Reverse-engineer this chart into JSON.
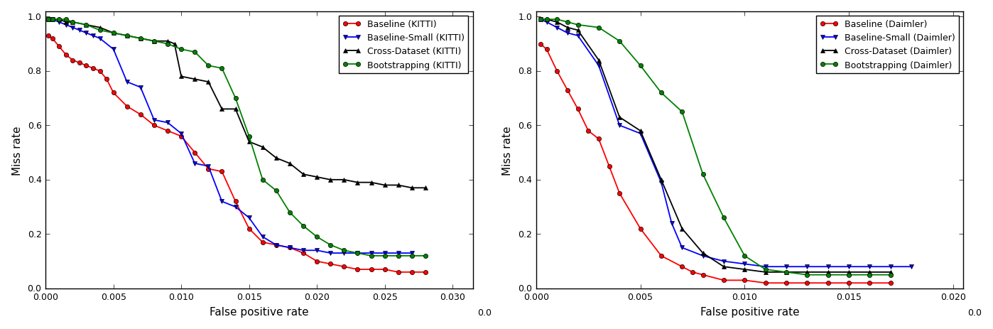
{
  "xlabel": "False positive rate",
  "ylabel": "Miss rate",
  "kitti_baseline_x": [
    0.0002,
    0.0005,
    0.001,
    0.0015,
    0.002,
    0.0025,
    0.003,
    0.0035,
    0.004,
    0.0045,
    0.005,
    0.006,
    0.007,
    0.008,
    0.009,
    0.01,
    0.011,
    0.012,
    0.013,
    0.014,
    0.015,
    0.016,
    0.017,
    0.018,
    0.019,
    0.02,
    0.021,
    0.022,
    0.023,
    0.024,
    0.025,
    0.026,
    0.027,
    0.028
  ],
  "kitti_baseline_y": [
    0.93,
    0.92,
    0.89,
    0.86,
    0.84,
    0.83,
    0.82,
    0.81,
    0.8,
    0.77,
    0.72,
    0.67,
    0.64,
    0.6,
    0.58,
    0.56,
    0.5,
    0.44,
    0.43,
    0.32,
    0.22,
    0.17,
    0.16,
    0.15,
    0.13,
    0.1,
    0.09,
    0.08,
    0.07,
    0.07,
    0.07,
    0.06,
    0.06,
    0.06
  ],
  "kitti_baseline_small_x": [
    0.0002,
    0.0005,
    0.001,
    0.0015,
    0.002,
    0.0025,
    0.003,
    0.0035,
    0.004,
    0.005,
    0.006,
    0.007,
    0.008,
    0.009,
    0.01,
    0.011,
    0.012,
    0.013,
    0.014,
    0.015,
    0.016,
    0.017,
    0.018,
    0.019,
    0.02,
    0.021,
    0.022,
    0.023,
    0.024,
    0.025,
    0.026,
    0.027
  ],
  "kitti_baseline_small_y": [
    0.99,
    0.99,
    0.98,
    0.97,
    0.96,
    0.95,
    0.94,
    0.93,
    0.92,
    0.88,
    0.76,
    0.74,
    0.62,
    0.61,
    0.57,
    0.46,
    0.45,
    0.32,
    0.3,
    0.26,
    0.19,
    0.16,
    0.15,
    0.14,
    0.14,
    0.13,
    0.13,
    0.13,
    0.13,
    0.13,
    0.13,
    0.13
  ],
  "kitti_cross_x": [
    0.0002,
    0.0005,
    0.001,
    0.0015,
    0.002,
    0.003,
    0.004,
    0.005,
    0.006,
    0.007,
    0.008,
    0.009,
    0.0095,
    0.01,
    0.011,
    0.012,
    0.013,
    0.014,
    0.015,
    0.016,
    0.017,
    0.018,
    0.019,
    0.02,
    0.021,
    0.022,
    0.023,
    0.024,
    0.025,
    0.026,
    0.027,
    0.028
  ],
  "kitti_cross_y": [
    0.99,
    0.99,
    0.99,
    0.98,
    0.98,
    0.97,
    0.96,
    0.94,
    0.93,
    0.92,
    0.91,
    0.91,
    0.9,
    0.78,
    0.77,
    0.76,
    0.66,
    0.66,
    0.54,
    0.52,
    0.48,
    0.46,
    0.42,
    0.41,
    0.4,
    0.4,
    0.39,
    0.39,
    0.38,
    0.38,
    0.37,
    0.37
  ],
  "kitti_bootstrap_x": [
    0.0002,
    0.0005,
    0.001,
    0.0015,
    0.002,
    0.003,
    0.004,
    0.005,
    0.006,
    0.007,
    0.008,
    0.009,
    0.01,
    0.011,
    0.012,
    0.013,
    0.014,
    0.015,
    0.016,
    0.017,
    0.018,
    0.019,
    0.02,
    0.021,
    0.022,
    0.023,
    0.024,
    0.025,
    0.026,
    0.027,
    0.028
  ],
  "kitti_bootstrap_y": [
    0.99,
    0.99,
    0.99,
    0.99,
    0.98,
    0.97,
    0.95,
    0.94,
    0.93,
    0.92,
    0.91,
    0.9,
    0.88,
    0.87,
    0.82,
    0.81,
    0.7,
    0.56,
    0.4,
    0.36,
    0.28,
    0.23,
    0.19,
    0.16,
    0.14,
    0.13,
    0.12,
    0.12,
    0.12,
    0.12,
    0.12
  ],
  "daimler_baseline_x": [
    0.0002,
    0.0005,
    0.001,
    0.0015,
    0.002,
    0.0025,
    0.003,
    0.0035,
    0.004,
    0.005,
    0.006,
    0.007,
    0.0075,
    0.008,
    0.009,
    0.01,
    0.011,
    0.012,
    0.013,
    0.014,
    0.015,
    0.016,
    0.017
  ],
  "daimler_baseline_y": [
    0.9,
    0.88,
    0.8,
    0.73,
    0.66,
    0.58,
    0.55,
    0.45,
    0.35,
    0.22,
    0.12,
    0.08,
    0.06,
    0.05,
    0.03,
    0.03,
    0.02,
    0.02,
    0.02,
    0.02,
    0.02,
    0.02,
    0.02
  ],
  "daimler_baseline_small_x": [
    0.0002,
    0.0005,
    0.001,
    0.0015,
    0.002,
    0.003,
    0.004,
    0.005,
    0.006,
    0.0065,
    0.007,
    0.008,
    0.009,
    0.01,
    0.011,
    0.012,
    0.013,
    0.014,
    0.015,
    0.016,
    0.017,
    0.018
  ],
  "daimler_baseline_small_y": [
    0.99,
    0.98,
    0.96,
    0.94,
    0.93,
    0.82,
    0.6,
    0.57,
    0.39,
    0.24,
    0.15,
    0.12,
    0.1,
    0.09,
    0.08,
    0.08,
    0.08,
    0.08,
    0.08,
    0.08,
    0.08,
    0.08
  ],
  "daimler_cross_x": [
    0.0002,
    0.0005,
    0.001,
    0.0015,
    0.002,
    0.003,
    0.004,
    0.005,
    0.006,
    0.007,
    0.008,
    0.009,
    0.01,
    0.011,
    0.012,
    0.013,
    0.014,
    0.015,
    0.016,
    0.017
  ],
  "daimler_cross_y": [
    0.99,
    0.99,
    0.98,
    0.96,
    0.95,
    0.84,
    0.63,
    0.58,
    0.4,
    0.22,
    0.13,
    0.08,
    0.07,
    0.06,
    0.06,
    0.06,
    0.06,
    0.06,
    0.06,
    0.06
  ],
  "daimler_bootstrap_x": [
    0.0002,
    0.0005,
    0.001,
    0.0015,
    0.002,
    0.003,
    0.004,
    0.005,
    0.006,
    0.007,
    0.008,
    0.009,
    0.01,
    0.011,
    0.012,
    0.013,
    0.014,
    0.015,
    0.016,
    0.017
  ],
  "daimler_bootstrap_y": [
    0.99,
    0.99,
    0.99,
    0.98,
    0.97,
    0.96,
    0.91,
    0.82,
    0.72,
    0.65,
    0.42,
    0.26,
    0.12,
    0.07,
    0.06,
    0.05,
    0.05,
    0.05,
    0.05,
    0.05
  ],
  "color_red": "#ff0000",
  "color_blue": "#0000ff",
  "color_black": "#000000",
  "color_green": "#008000",
  "kitti_xlim": [
    0.0,
    0.0315
  ],
  "kitti_xticks": [
    0.0,
    0.005,
    0.01,
    0.015,
    0.02,
    0.025,
    0.03
  ],
  "daimler_xlim": [
    0.0,
    0.0205
  ],
  "daimler_xticks": [
    0.0,
    0.005,
    0.01,
    0.015,
    0.02
  ],
  "ylim": [
    0.0,
    1.02
  ],
  "yticks": [
    0.0,
    0.2,
    0.4,
    0.6,
    0.8,
    1.0
  ]
}
